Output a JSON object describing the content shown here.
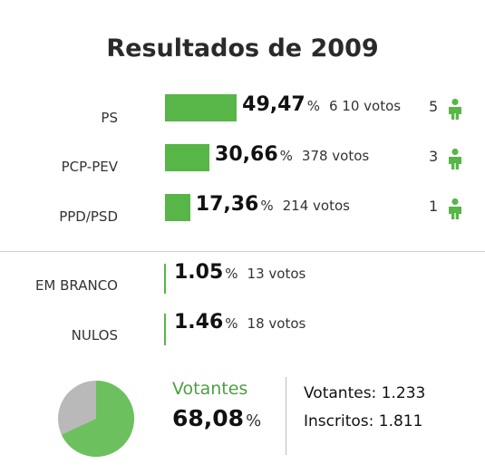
{
  "title": "Resultados de 2009",
  "parties": [
    {
      "name": "PS",
      "percent": "49,47",
      "percent_value": 49.47,
      "votes": "6 10 votos",
      "seats": "5"
    },
    {
      "name": "PCP-PEV",
      "percent": "30,66",
      "percent_value": 30.66,
      "votes": "378 votos",
      "seats": "3"
    },
    {
      "name": "PPD/PSD",
      "percent": "17,36",
      "percent_value": 17.36,
      "votes": "214 votos",
      "seats": "1"
    }
  ],
  "others": [
    {
      "name": "EM BRANCO",
      "percent": "1.05",
      "votes": "13 votos"
    },
    {
      "name": "NULOS",
      "percent": "1.46",
      "votes": "18 votos"
    }
  ],
  "percent_symbol": "%",
  "turnout": {
    "label": "Votantes",
    "percent": "68,08",
    "percent_value": 68.08,
    "voters_line": "Votantes: 1.233",
    "registered_line": "Inscritos: 1.811"
  },
  "colors": {
    "bar": "#57b647",
    "pie_voted": "#6cc15e",
    "pie_abstained": "#b9b9b9",
    "seat_icon": "#57b647"
  },
  "icons": {
    "seat": "person-icon"
  }
}
